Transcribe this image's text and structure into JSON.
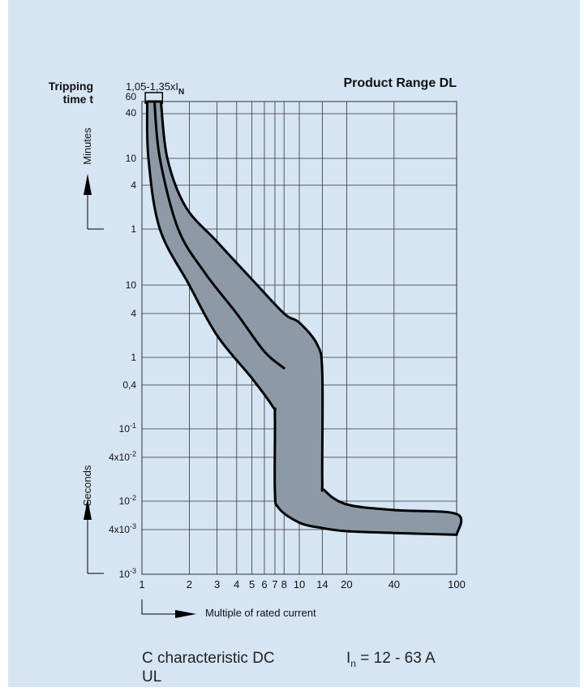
{
  "chart_data": {
    "type": "line",
    "title": "Product Range DL",
    "ylabel": [
      "Tripping",
      "time t"
    ],
    "xlabel": "Multiple of rated current",
    "x_scale": "log",
    "xlim": [
      1,
      100
    ],
    "x_ticks": [
      1,
      2,
      3,
      4,
      5,
      6,
      7,
      8,
      10,
      14,
      20,
      40,
      100
    ],
    "x_tick_labels": [
      "1",
      "2",
      "3",
      "4",
      "5",
      "6",
      "7",
      "8",
      "10",
      "14",
      "20",
      "40",
      "100"
    ],
    "y_minutes_label": "Minutes",
    "y_seconds_label": "Seconds",
    "y_minutes_ticks": [
      "60",
      "40",
      "10",
      "4",
      "1"
    ],
    "y_seconds_ticks": [
      "10",
      "4",
      "1",
      "0,4",
      "10",
      "4x10",
      "10",
      "4x10",
      "10"
    ],
    "y_seconds_exponents": [
      "",
      "",
      "",
      "",
      "-1",
      "-2",
      "-2",
      "-3",
      "-3"
    ],
    "annotation": {
      "base": "1,05-1,35xI",
      "sub": "N"
    },
    "band_color": "#8c9aa7",
    "series": [
      {
        "role": "upper boundary",
        "x": [
          1.32,
          1.45,
          1.9,
          3.0,
          5.0,
          8.0,
          10.0,
          13.0,
          14.0,
          14.0,
          14.5,
          20.0,
          40.0,
          100.0,
          100.0
        ],
        "y": [
          "60 min",
          "10 min",
          "2 min",
          "40 s",
          "12 s",
          "4 s",
          "3 s",
          "1.5 s",
          "0.6 s",
          "0.02 s",
          "0.014 s",
          "0.009 s",
          "0.0075 s",
          "0.0066 s",
          "0.0034 s"
        ]
      },
      {
        "role": "lower boundary",
        "x": [
          1.08,
          1.1,
          1.3,
          2.0,
          3.0,
          5.0,
          6.8,
          7.0,
          7.0,
          7.4,
          10.0,
          14.0,
          20.0,
          40.0,
          100.0
        ],
        "y": [
          "60 min",
          "10 min",
          "1 min",
          "10 s",
          "2 s",
          "0.5 s",
          "0.2 s",
          "0.15 s",
          "0.014 s",
          "0.008 s",
          "0.005 s",
          "0.0042 s",
          "0.0038 s",
          "0.0036 s",
          "0.0034 s"
        ]
      },
      {
        "role": "middle curve",
        "x": [
          1.2,
          1.3,
          1.7,
          2.5,
          4.0,
          6.0,
          8.0
        ],
        "y": [
          "60 min",
          "10 min",
          "1 min",
          "15 s",
          "4 s",
          "1.2 s",
          "0.7 s"
        ]
      }
    ]
  },
  "footer": {
    "left_line1": "C characteristic DC",
    "left_line2": "UL",
    "right_base": "I",
    "right_sub": "n",
    "right_rest": " = 12 - 63 A"
  }
}
